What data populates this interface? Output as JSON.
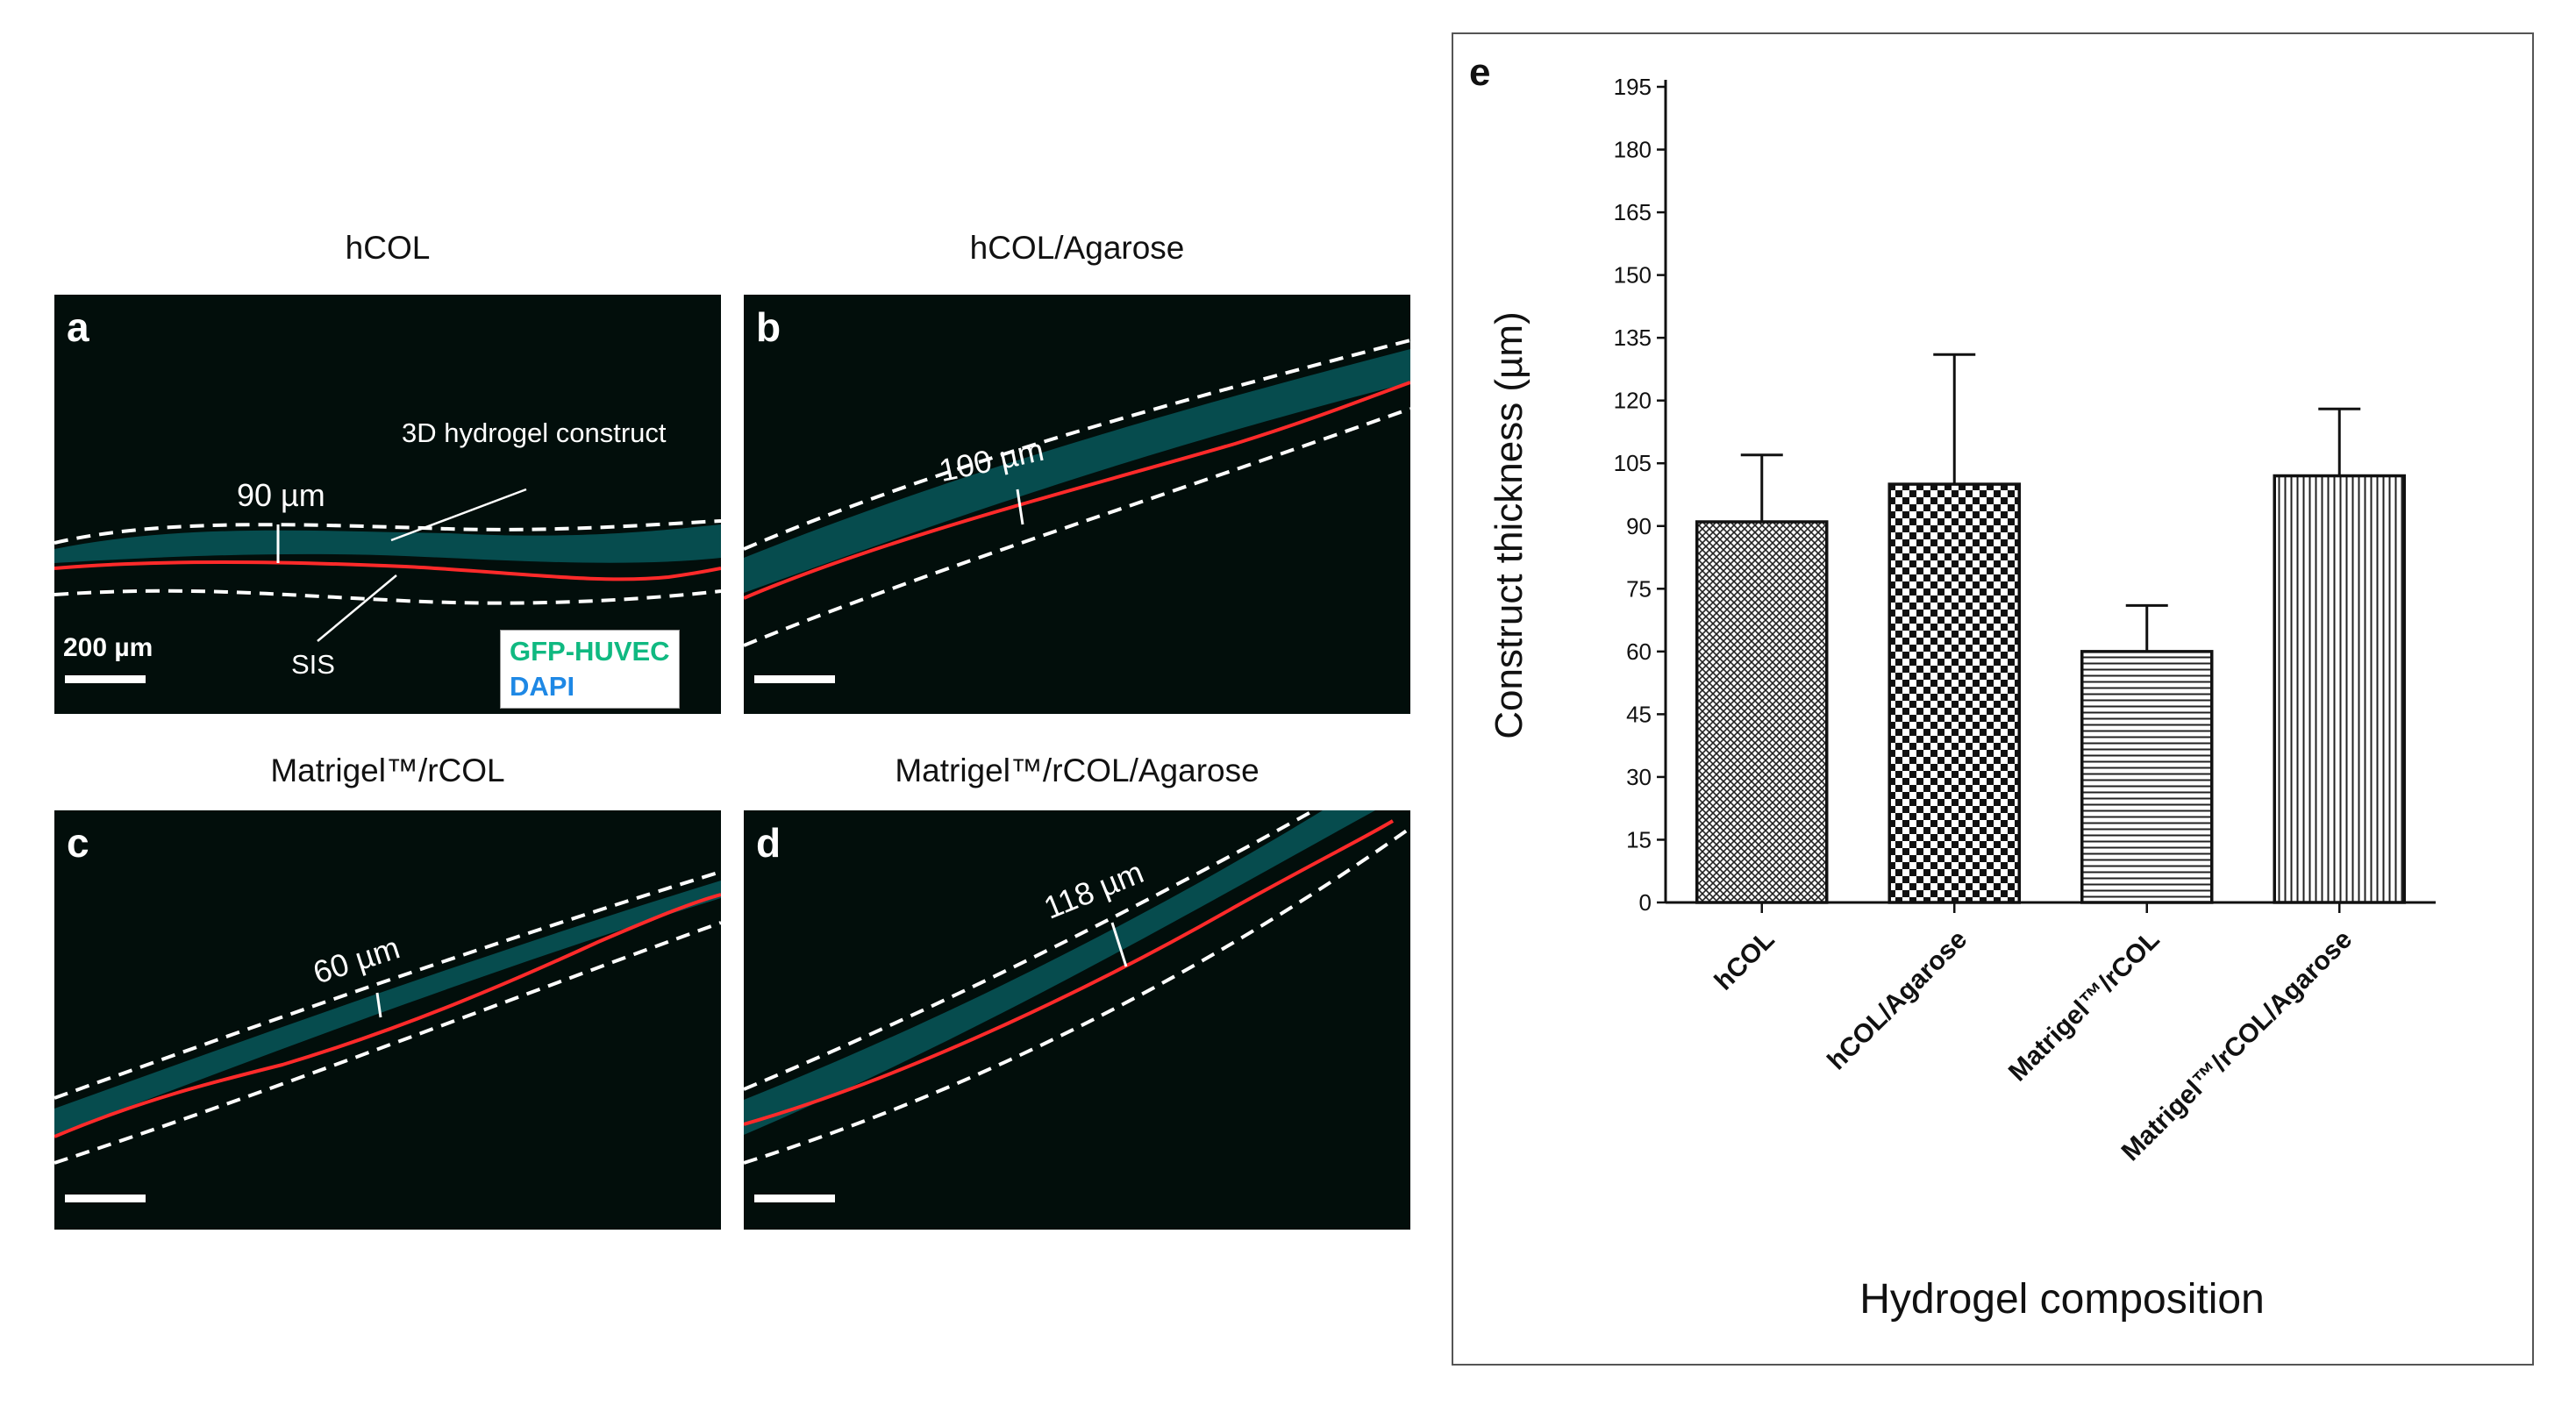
{
  "panels": [
    {
      "letter": "a",
      "title": "hCOL",
      "measurement": "90 µm",
      "scale_label": "200 µm"
    },
    {
      "letter": "b",
      "title": "hCOL/Agarose",
      "measurement": "100 µm"
    },
    {
      "letter": "c",
      "title": "Matrigel™/rCOL",
      "measurement": "60 µm"
    },
    {
      "letter": "d",
      "title": "Matrigel™/rCOL/Agarose",
      "measurement": "118 µm"
    }
  ],
  "annotations": {
    "construct": "3D hydrogel construct",
    "sis": "SIS"
  },
  "legend": {
    "gfp": "GFP-HUVEC",
    "dapi": "DAPI"
  },
  "colors": {
    "background": "#020e0b",
    "cells": "#2ec4c8",
    "gfp_text": "#10b981",
    "dapi_text": "#1e88e5",
    "sis_line": "#ff2a2a",
    "outline": "#ffffff"
  },
  "chart_data": {
    "panel_label": "e",
    "type": "bar",
    "ylabel": "Construct thickness (µm)",
    "xlabel": "Hydrogel composition",
    "ylim": [
      0,
      195
    ],
    "yticks": [
      0,
      15,
      30,
      45,
      60,
      75,
      90,
      105,
      120,
      135,
      150,
      165,
      180,
      195
    ],
    "categories": [
      "hCOL",
      "hCOL/Agarose",
      "Matrigel™/rCOL",
      "Matrigel™/rCOL/Agarose"
    ],
    "values": [
      91,
      100,
      60,
      102
    ],
    "errors": [
      16,
      31,
      11,
      16
    ],
    "patterns": [
      "fine-crosshatch",
      "checker",
      "horizontal-lines",
      "vertical-lines"
    ]
  }
}
